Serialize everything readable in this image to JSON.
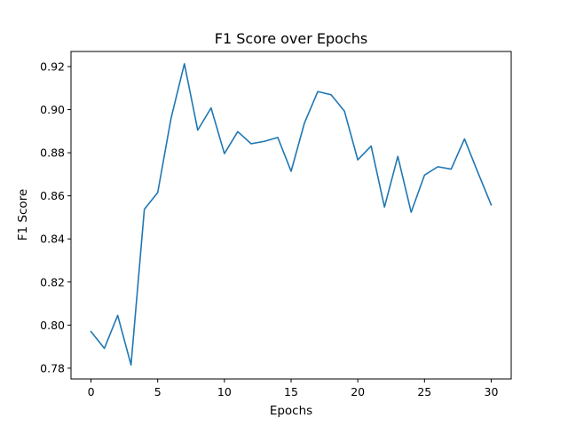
{
  "chart_data": {
    "type": "line",
    "title": "F1 Score over Epochs",
    "xlabel": "Epochs",
    "ylabel": "F1 Score",
    "xlim": [
      -1.5,
      31.5
    ],
    "ylim": [
      0.775,
      0.927
    ],
    "x_ticks": [
      0,
      5,
      10,
      15,
      20,
      25,
      30
    ],
    "y_ticks": [
      0.78,
      0.8,
      0.82,
      0.84,
      0.86,
      0.88,
      0.9,
      0.92
    ],
    "x_tick_labels": [
      "0",
      "5",
      "10",
      "15",
      "20",
      "25",
      "30"
    ],
    "y_tick_labels": [
      "0.78",
      "0.80",
      "0.82",
      "0.84",
      "0.86",
      "0.88",
      "0.90",
      "0.92"
    ],
    "grid": false,
    "legend": "none",
    "series": [
      {
        "color": "#1f77b4",
        "x": [
          0,
          1,
          2,
          3,
          4,
          5,
          6,
          7,
          8,
          9,
          10,
          11,
          12,
          13,
          14,
          15,
          16,
          17,
          18,
          19,
          20,
          21,
          22,
          23,
          24,
          25,
          26,
          27,
          28,
          29,
          30
        ],
        "values": [
          0.797,
          0.7892,
          0.8045,
          0.7815,
          0.8538,
          0.8615,
          0.896,
          0.9213,
          0.8905,
          0.9008,
          0.8796,
          0.8898,
          0.8842,
          0.8853,
          0.8871,
          0.8714,
          0.8938,
          0.9084,
          0.9069,
          0.8993,
          0.8767,
          0.8831,
          0.8548,
          0.8783,
          0.8524,
          0.8696,
          0.8735,
          0.8724,
          0.8864,
          0.8709,
          0.8558
        ]
      }
    ]
  }
}
